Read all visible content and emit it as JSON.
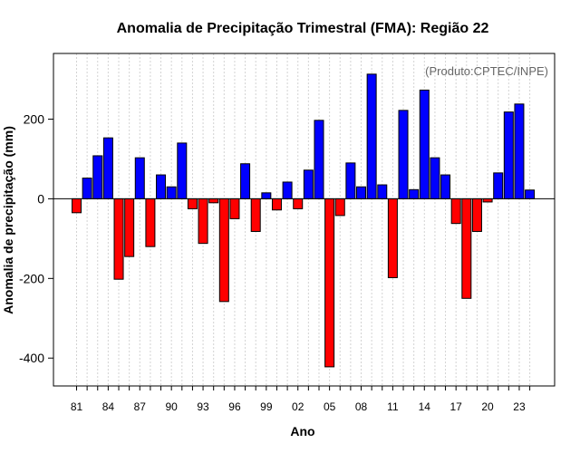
{
  "chart_data": {
    "type": "bar",
    "title": "Anomalia de Precipitação Trimestral (FMA): Região 22",
    "xlabel": "Ano",
    "ylabel": "Anomalia de precipitação (mm)",
    "annotation": "(Produto:CPTEC/INPE)",
    "ylim": [
      -470,
      365
    ],
    "yticks": [
      -400,
      -200,
      0,
      200
    ],
    "x_tick_labels": [
      "81",
      "84",
      "87",
      "90",
      "93",
      "96",
      "99",
      "02",
      "05",
      "08",
      "11",
      "14",
      "17",
      "20",
      "23"
    ],
    "x_tick_index": [
      0,
      3,
      6,
      9,
      12,
      15,
      18,
      21,
      24,
      27,
      30,
      33,
      36,
      39,
      42
    ],
    "categories": [
      "1981",
      "1982",
      "1983",
      "1984",
      "1985",
      "1986",
      "1987",
      "1988",
      "1989",
      "1990",
      "1991",
      "1992",
      "1993",
      "1994",
      "1995",
      "1996",
      "1997",
      "1998",
      "1999",
      "2000",
      "2001",
      "2002",
      "2003",
      "2004",
      "2005",
      "2006",
      "2007",
      "2008",
      "2009",
      "2010",
      "2011",
      "2012",
      "2013",
      "2014",
      "2015",
      "2016",
      "2017",
      "2018",
      "2019",
      "2020",
      "2021",
      "2022",
      "2023",
      "2024"
    ],
    "values": [
      -35,
      52,
      108,
      153,
      -202,
      -145,
      103,
      -120,
      60,
      30,
      140,
      -25,
      -112,
      -10,
      -258,
      -50,
      88,
      -82,
      15,
      -28,
      42,
      -25,
      72,
      197,
      -422,
      -42,
      90,
      30,
      313,
      35,
      -198,
      222,
      23,
      273,
      103,
      60,
      -62,
      -250,
      -82,
      -8,
      65,
      218,
      238,
      22
    ],
    "colors": {
      "positive": "#0000FF",
      "negative": "#FF0000",
      "grid": "#d3d3d3",
      "frame": "#000000"
    },
    "grid": true
  }
}
